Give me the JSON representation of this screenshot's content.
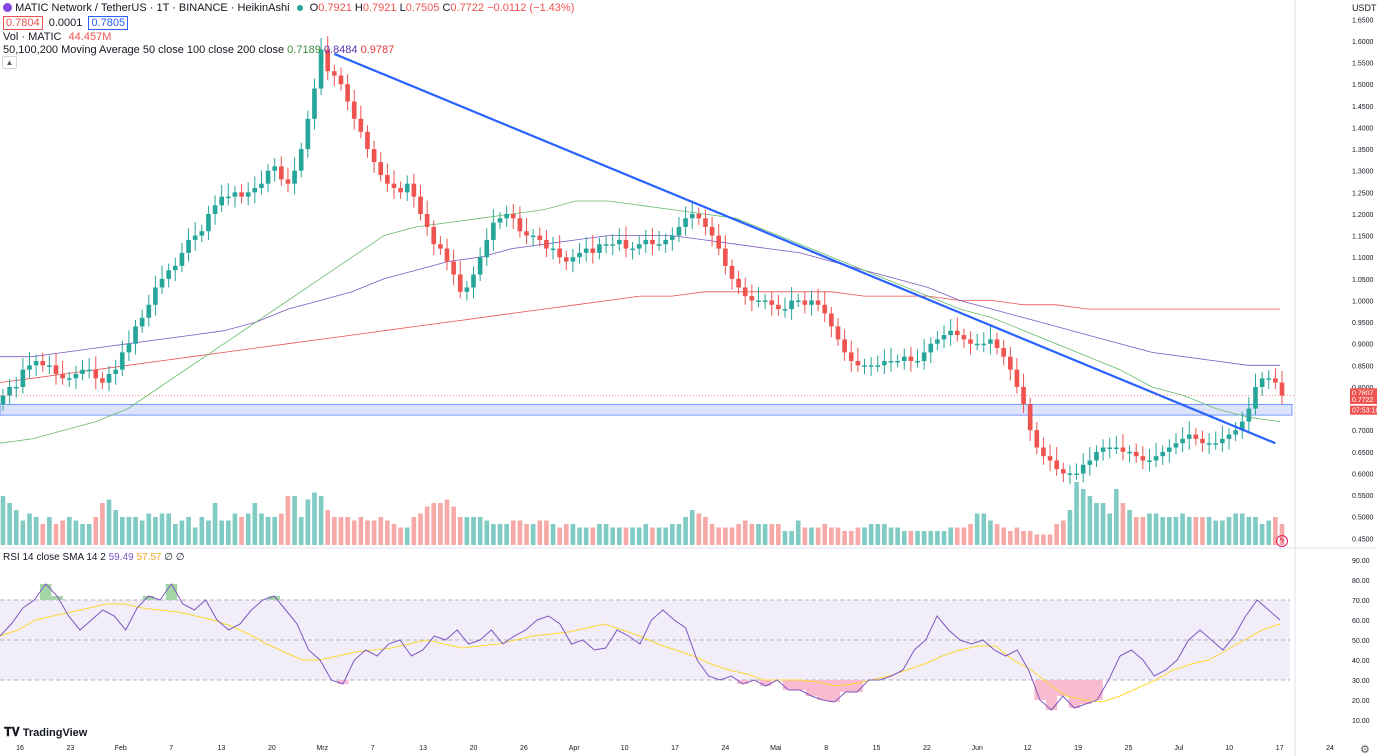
{
  "header": {
    "symbol_line": "MATIC Network / TetherUS · 1T · BINANCE · HeikinAshi",
    "ohlc": {
      "o_label": "O",
      "o": "0.7921",
      "h_label": "H",
      "h": "0.7921",
      "l_label": "L",
      "l": "0.7505",
      "c_label": "C",
      "c": "0.7722",
      "change": "−0.0112 (−1.43%)"
    },
    "bid": "0.7804",
    "spread": "0.0001",
    "ask": "0.7805",
    "vol_label": "Vol · MATIC",
    "vol_value": "44.457M",
    "ma_label": "50,100,200 Moving Average 50 close 100 close 200 close",
    "ma50": "0.7189",
    "ma100": "0.8484",
    "ma200": "0.9787",
    "rsi_label": "RSI 14 close SMA 14 2",
    "rsi_value": "59.49",
    "rsi_sma": "57.57",
    "rsi_extra": "∅ ∅",
    "collapse_icon": "chevron-up-icon"
  },
  "price_axis": {
    "unit": "USDT",
    "labels": [
      "1.6500",
      "1.6000",
      "1.5500",
      "1.5000",
      "1.4500",
      "1.4000",
      "1.3500",
      "1.3000",
      "1.2500",
      "1.2000",
      "1.1500",
      "1.1000",
      "1.0500",
      "1.0000",
      "0.9500",
      "0.9000",
      "0.8500",
      "0.8000",
      "0.7500",
      "0.7000",
      "0.6500",
      "0.6000",
      "0.5500",
      "0.5000",
      "0.4500"
    ],
    "price_tag": "0.7807",
    "close_tag": "0.7722",
    "countdown_tag": "07:53:16"
  },
  "rsi_axis": {
    "labels": [
      "90.00",
      "80.00",
      "70.00",
      "60.00",
      "50.00",
      "40.00",
      "30.00",
      "20.00",
      "10.00"
    ],
    "overbought": 70,
    "oversold": 30
  },
  "time_axis": {
    "labels": [
      "16",
      "23",
      "Feb",
      "7",
      "13",
      "20",
      "Mrz",
      "7",
      "13",
      "20",
      "26",
      "Apr",
      "10",
      "17",
      "24",
      "Mai",
      "8",
      "15",
      "22",
      "Jun",
      "12",
      "19",
      "25",
      "Jul",
      "10",
      "17",
      "24"
    ]
  },
  "footer": {
    "logo": "TradingView",
    "settings_icon": "gear-icon",
    "lightning_icon": "lightning-icon"
  },
  "colors": {
    "up": "#26a69a",
    "down": "#ef5350",
    "vol_up": "#80cbc4",
    "vol_down": "#f7a9a7",
    "ma50": "#66bb6a",
    "ma100": "#7e57c2",
    "ma200": "#ef5350",
    "trendline": "#2962ff",
    "zone": "#dde3fb",
    "rsi": "#7e57c2",
    "rsi_sma": "#fdd835"
  },
  "chart_data": [
    {
      "type": "candlestick",
      "title": "MATIC Network / TetherUS · 1T · BINANCE · HeikinAshi",
      "x_range": [
        "Jan 13",
        "Jul 17"
      ],
      "ylim": [
        0.43,
        1.66
      ],
      "closes": [
        0.78,
        0.8,
        0.8,
        0.84,
        0.85,
        0.86,
        0.85,
        0.85,
        0.83,
        0.82,
        0.82,
        0.83,
        0.84,
        0.84,
        0.82,
        0.81,
        0.83,
        0.84,
        0.88,
        0.9,
        0.94,
        0.96,
        0.99,
        1.03,
        1.05,
        1.07,
        1.08,
        1.11,
        1.14,
        1.15,
        1.16,
        1.2,
        1.22,
        1.24,
        1.24,
        1.25,
        1.24,
        1.25,
        1.26,
        1.27,
        1.3,
        1.31,
        1.28,
        1.27,
        1.3,
        1.35,
        1.42,
        1.49,
        1.58,
        1.53,
        1.52,
        1.5,
        1.46,
        1.42,
        1.39,
        1.35,
        1.32,
        1.29,
        1.27,
        1.26,
        1.25,
        1.27,
        1.24,
        1.2,
        1.17,
        1.13,
        1.12,
        1.09,
        1.06,
        1.02,
        1.03,
        1.06,
        1.1,
        1.14,
        1.18,
        1.19,
        1.2,
        1.19,
        1.16,
        1.15,
        1.15,
        1.14,
        1.12,
        1.12,
        1.1,
        1.09,
        1.1,
        1.11,
        1.12,
        1.11,
        1.13,
        1.13,
        1.13,
        1.14,
        1.12,
        1.12,
        1.13,
        1.14,
        1.13,
        1.13,
        1.14,
        1.15,
        1.17,
        1.19,
        1.2,
        1.19,
        1.17,
        1.15,
        1.12,
        1.08,
        1.05,
        1.03,
        1.01,
        1.0,
        1.0,
        1.0,
        0.99,
        0.98,
        0.98,
        1.0,
        1.0,
        0.99,
        1.0,
        0.99,
        0.97,
        0.94,
        0.91,
        0.88,
        0.86,
        0.85,
        0.85,
        0.85,
        0.85,
        0.86,
        0.86,
        0.86,
        0.87,
        0.86,
        0.86,
        0.88,
        0.9,
        0.91,
        0.92,
        0.93,
        0.92,
        0.91,
        0.9,
        0.9,
        0.9,
        0.91,
        0.89,
        0.87,
        0.84,
        0.8,
        0.76,
        0.7,
        0.66,
        0.64,
        0.63,
        0.61,
        0.6,
        0.6,
        0.6,
        0.62,
        0.63,
        0.65,
        0.66,
        0.66,
        0.66,
        0.65,
        0.65,
        0.64,
        0.63,
        0.63,
        0.64,
        0.65,
        0.66,
        0.67,
        0.68,
        0.69,
        0.68,
        0.67,
        0.67,
        0.67,
        0.68,
        0.69,
        0.7,
        0.72,
        0.75,
        0.8,
        0.82,
        0.82,
        0.81,
        0.78
      ],
      "volume_heatmap_note": "",
      "volumes": [
        70,
        60,
        50,
        35,
        45,
        40,
        30,
        40,
        30,
        35,
        40,
        35,
        30,
        30,
        40,
        60,
        65,
        50,
        40,
        40,
        40,
        35,
        45,
        40,
        45,
        45,
        30,
        35,
        40,
        25,
        40,
        35,
        60,
        35,
        35,
        45,
        40,
        45,
        60,
        45,
        40,
        40,
        45,
        70,
        70,
        40,
        65,
        75,
        70,
        50,
        40,
        40,
        40,
        35,
        40,
        35,
        35,
        40,
        35,
        30,
        25,
        25,
        40,
        45,
        55,
        60,
        60,
        65,
        55,
        40,
        40,
        40,
        40,
        35,
        30,
        30,
        30,
        35,
        35,
        30,
        30,
        35,
        35,
        30,
        25,
        30,
        30,
        25,
        25,
        25,
        30,
        30,
        25,
        25,
        25,
        25,
        25,
        30,
        25,
        25,
        25,
        30,
        30,
        40,
        50,
        45,
        40,
        30,
        25,
        25,
        25,
        30,
        35,
        30,
        30,
        30,
        30,
        30,
        20,
        20,
        35,
        25,
        25,
        25,
        30,
        25,
        25,
        20,
        20,
        25,
        25,
        30,
        30,
        30,
        25,
        25,
        20,
        20,
        20,
        20,
        20,
        20,
        20,
        25,
        25,
        25,
        30,
        45,
        45,
        35,
        30,
        25,
        20,
        25,
        20,
        20,
        15,
        15,
        15,
        30,
        35,
        50,
        90,
        80,
        70,
        60,
        60,
        45,
        80,
        60,
        50,
        40,
        40,
        45,
        45,
        40,
        40,
        40,
        45,
        40,
        40,
        40,
        40,
        35,
        35,
        40,
        45,
        45,
        40,
        40,
        30,
        35,
        40,
        30,
        25,
        25,
        30,
        40,
        45,
        55,
        80,
        80,
        30,
        30,
        30,
        20
      ],
      "ma50": [
        0.67,
        0.68,
        0.7,
        0.72,
        0.75,
        0.8,
        0.85,
        0.9,
        0.95,
        1.0,
        1.05,
        1.1,
        1.15,
        1.17,
        1.18,
        1.19,
        1.2,
        1.21,
        1.23,
        1.23,
        1.22,
        1.21,
        1.2,
        1.19,
        1.16,
        1.13,
        1.1,
        1.07,
        1.04,
        1.01,
        0.98,
        0.96,
        0.93,
        0.9,
        0.87,
        0.84,
        0.8,
        0.78,
        0.75,
        0.73,
        0.72
      ],
      "ma100": [
        0.87,
        0.87,
        0.88,
        0.89,
        0.9,
        0.91,
        0.92,
        0.93,
        0.95,
        0.98,
        1.0,
        1.02,
        1.05,
        1.07,
        1.09,
        1.1,
        1.12,
        1.13,
        1.14,
        1.15,
        1.15,
        1.15,
        1.14,
        1.13,
        1.12,
        1.11,
        1.09,
        1.07,
        1.05,
        1.03,
        1.0,
        0.98,
        0.96,
        0.94,
        0.92,
        0.9,
        0.88,
        0.87,
        0.86,
        0.85,
        0.85
      ],
      "ma200": [
        0.81,
        0.82,
        0.83,
        0.84,
        0.85,
        0.86,
        0.87,
        0.88,
        0.89,
        0.9,
        0.91,
        0.92,
        0.93,
        0.94,
        0.95,
        0.96,
        0.97,
        0.98,
        0.99,
        1.0,
        1.01,
        1.01,
        1.02,
        1.02,
        1.02,
        1.02,
        1.02,
        1.01,
        1.01,
        1.01,
        1.0,
        1.0,
        0.99,
        0.99,
        0.98,
        0.98,
        0.98,
        0.98,
        0.98,
        0.98,
        0.98
      ],
      "trendline": [
        [
          50,
          1.57
        ],
        [
          192,
          0.67
        ]
      ],
      "zone": [
        0.735,
        0.76
      ]
    },
    {
      "type": "line",
      "title": "RSI 14 close SMA 14 2",
      "ylim": [
        10,
        90
      ],
      "rsi": [
        52,
        58,
        66,
        70,
        78,
        72,
        62,
        55,
        60,
        65,
        62,
        55,
        66,
        72,
        70,
        78,
        68,
        65,
        70,
        60,
        55,
        58,
        65,
        70,
        72,
        65,
        58,
        45,
        40,
        30,
        28,
        40,
        45,
        42,
        48,
        50,
        42,
        45,
        52,
        50,
        55,
        48,
        50,
        55,
        48,
        52,
        55,
        60,
        62,
        58,
        48,
        50,
        45,
        46,
        55,
        52,
        48,
        60,
        65,
        60,
        56,
        40,
        32,
        30,
        32,
        28,
        30,
        27,
        30,
        25,
        25,
        22,
        20,
        19,
        24,
        24,
        30,
        30,
        32,
        35,
        45,
        50,
        62,
        55,
        50,
        48,
        50,
        45,
        42,
        45,
        35,
        20,
        15,
        22,
        16,
        18,
        20,
        30,
        42,
        45,
        40,
        32,
        35,
        40,
        50,
        55,
        50,
        45,
        52,
        62,
        70,
        65,
        60
      ],
      "rsi_sma": [
        52,
        55,
        60,
        62,
        64,
        66,
        68,
        68,
        66,
        65,
        64,
        62,
        60,
        57,
        53,
        48,
        44,
        40,
        40,
        42,
        44,
        45,
        46,
        48,
        50,
        48,
        46,
        47,
        48,
        50,
        52,
        53,
        54,
        56,
        58,
        55,
        52,
        48,
        45,
        42,
        38,
        35,
        33,
        30,
        30,
        30,
        29,
        27,
        28,
        30,
        32,
        35,
        38,
        42,
        45,
        47,
        47,
        40,
        35,
        28,
        22,
        20,
        19,
        22,
        26,
        30,
        35,
        38,
        40,
        45,
        50,
        55,
        58
      ]
    }
  ]
}
